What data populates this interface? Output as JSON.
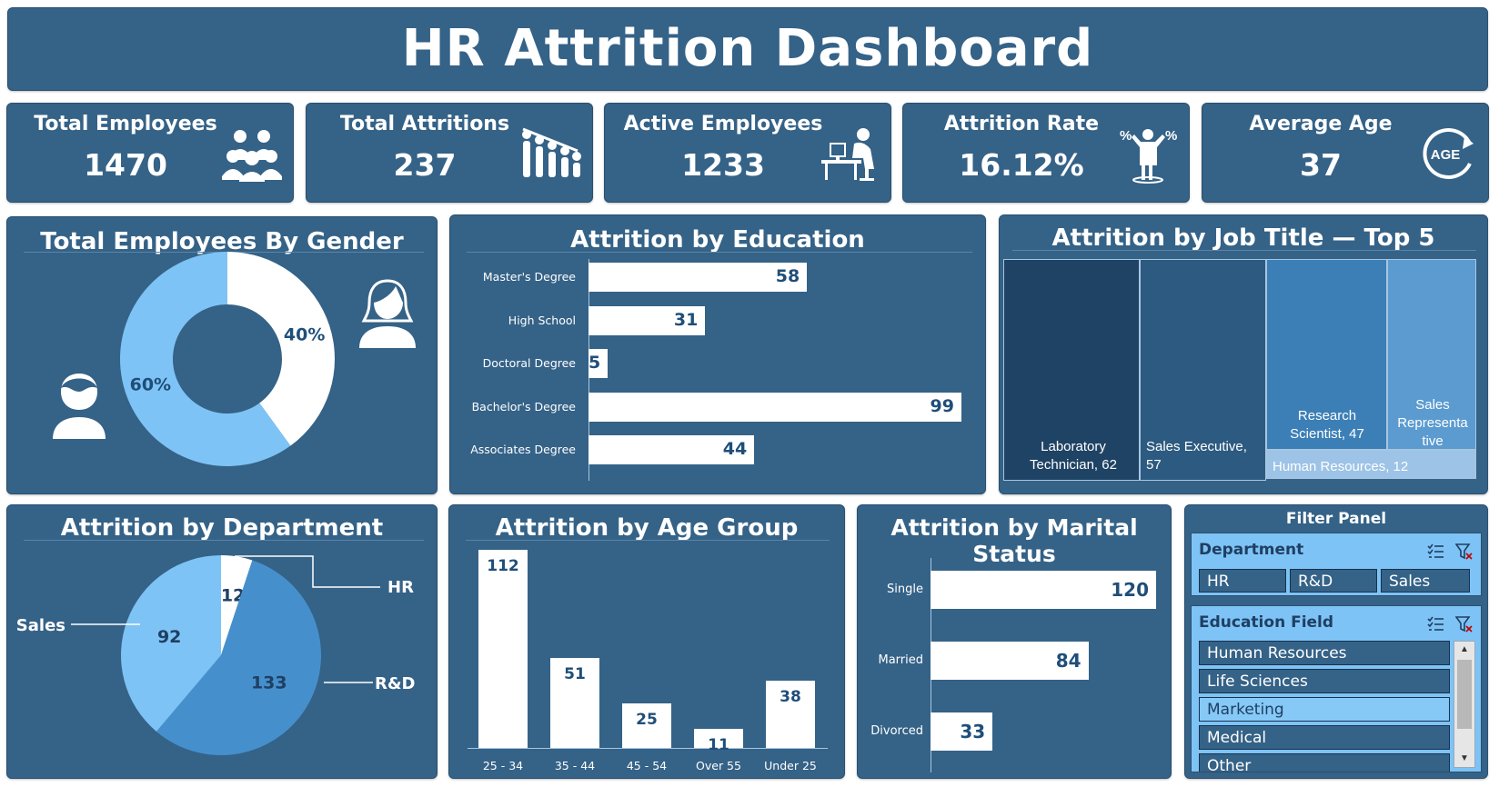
{
  "dashboard": {
    "title": "HR Attrition Dashboard"
  },
  "kpis": {
    "total_employees": {
      "label": "Total Employees",
      "value": "1470",
      "icon": "people-group-icon"
    },
    "total_attritions": {
      "label": "Total Attritions",
      "value": "237",
      "icon": "people-declining-icon"
    },
    "active_employees": {
      "label": "Active Employees",
      "value": "1233",
      "icon": "person-at-desk-icon"
    },
    "attrition_rate": {
      "label": "Attrition Rate",
      "value": "16.12%",
      "icon": "percent-person-icon"
    },
    "average_age": {
      "label": "Average Age",
      "value": "37",
      "icon": "age-cycle-icon"
    }
  },
  "gender_chart": {
    "title": "Total Employees By Gender",
    "chart_data": {
      "type": "pie",
      "slices": [
        {
          "value": 40,
          "label": "40%",
          "color": "#ffffff"
        },
        {
          "value": 60,
          "label": "60%",
          "color": "#7ec3f5"
        }
      ]
    },
    "icons": {
      "female": "female-avatar-icon",
      "male": "male-avatar-icon"
    }
  },
  "education_chart": {
    "title": "Attrition by Education",
    "chart_data": {
      "type": "bar",
      "orientation": "horizontal",
      "categories": [
        "Master's Degree",
        "High School",
        "Doctoral Degree",
        "Bachelor's Degree",
        "Associates Degree"
      ],
      "values": [
        58,
        31,
        5,
        99,
        44
      ]
    }
  },
  "jobtitle_chart": {
    "title": "Attrition by Job Title — Top 5",
    "chart_data": {
      "type": "treemap",
      "items": [
        {
          "name": "Laboratory Technician",
          "value": 62,
          "label": "Laboratory Technician, 62",
          "color": "#1f4364"
        },
        {
          "name": "Sales Executive",
          "value": 57,
          "label": "Sales Executive, 57",
          "color": "#2d5a80"
        },
        {
          "name": "Research Scientist",
          "value": 47,
          "label": "Research Scientist, 47",
          "color": "#3b7fb6"
        },
        {
          "name": "Sales Representative",
          "value": "",
          "label": "Sales Representa tive",
          "color": "#5b9bd0"
        },
        {
          "name": "Human Resources",
          "value": 12,
          "label": "Human Resources, 12",
          "color": "#9dc3e6"
        }
      ]
    }
  },
  "department_chart": {
    "title": "Attrition by Department",
    "chart_data": {
      "type": "pie",
      "slices": [
        {
          "name": "HR",
          "value": 12,
          "label": "12",
          "color": "#ffffff"
        },
        {
          "name": "R&D",
          "value": 133,
          "label": "133",
          "color": "#4590cc"
        },
        {
          "name": "Sales",
          "value": 92,
          "label": "92",
          "color": "#7ec3f5"
        }
      ]
    }
  },
  "age_chart": {
    "title": "Attrition by Age Group",
    "chart_data": {
      "type": "bar",
      "categories": [
        "25 - 34",
        "35 - 44",
        "45 - 54",
        "Over 55",
        "Under 25"
      ],
      "values": [
        112,
        51,
        25,
        11,
        38
      ]
    }
  },
  "marital_chart": {
    "title": "Attrition by Marital Status",
    "chart_data": {
      "type": "bar",
      "orientation": "horizontal",
      "categories": [
        "Single",
        "Married",
        "Divorced"
      ],
      "values": [
        120,
        84,
        33
      ]
    }
  },
  "filter_panel": {
    "title": "Filter Panel",
    "department": {
      "title": "Department",
      "options": [
        "HR",
        "R&D",
        "Sales"
      ]
    },
    "education_field": {
      "title": "Education Field",
      "options": [
        "Human Resources",
        "Life Sciences",
        "Marketing",
        "Medical",
        "Other"
      ],
      "selected": "Marketing"
    },
    "icons": {
      "multi_select": "multi-select-icon",
      "clear_filter": "clear-filter-icon"
    }
  }
}
